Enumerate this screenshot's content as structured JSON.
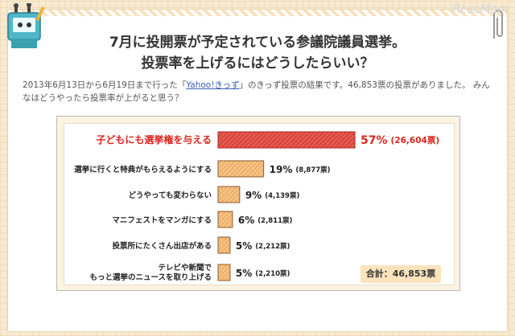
{
  "header": {
    "logo_text": "ReseMom",
    "title_line1": "7月に投開票が予定されている参議院議員選挙。",
    "title_line2": "投票率を上げるにはどうしたらいい？"
  },
  "description": {
    "before_link": "2013年6月13日から6月19日まで行った「",
    "link_text": "Yahoo!きっず",
    "after_link": "」のきっず投票の結果です。46,853票の投票がありました。 みんなはどうやったら投票率が上がると思う？"
  },
  "chart_data": {
    "type": "bar",
    "orientation": "horizontal",
    "title": "",
    "xlabel": "",
    "ylabel": "",
    "xlim": [
      0,
      100
    ],
    "categories": [
      [
        "子どもにも選挙権を与える"
      ],
      [
        "選挙に行くと特典がもらえるようにする"
      ],
      [
        "どうやっても変わらない"
      ],
      [
        "マニフェストをマンガにする"
      ],
      [
        "投票所にたくさん出店がある"
      ],
      [
        "テレビや新聞で",
        "もっと選挙のニュースを取り上げる"
      ]
    ],
    "values": [
      57,
      19,
      9,
      6,
      5,
      5
    ],
    "percent_labels": [
      "57%",
      "19%",
      "9%",
      "6%",
      "5%",
      "5%"
    ],
    "count_labels": [
      "(26,604票)",
      "(8,877票)",
      "(4,139票)",
      "(2,811票)",
      "(2,212票)",
      "(2,210票)"
    ],
    "highlight_index": 0,
    "colors": {
      "highlight_fill": "#e0403a",
      "highlight_stroke": "#b51f1c",
      "highlight_text": "#d9261c",
      "normal_fill": "#f2b36b",
      "normal_stroke": "#8a5a2a",
      "text": "#222222"
    },
    "grid": false,
    "legend": "none"
  },
  "total": {
    "label": "合計：46,853票"
  },
  "colors": {
    "background": "#f7ead0",
    "card": "#ffffff",
    "chart_panel": "#fdf3e3",
    "total_badge": "#fbe3bd"
  }
}
